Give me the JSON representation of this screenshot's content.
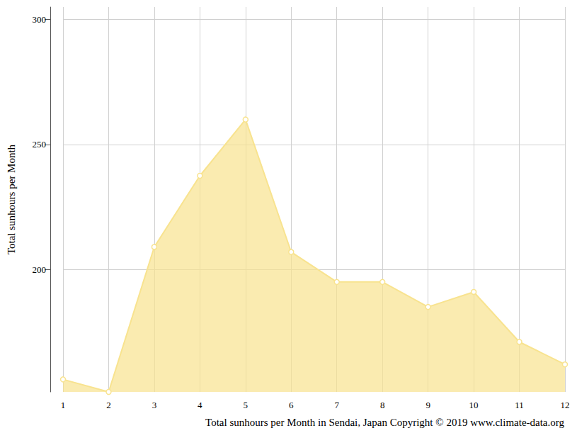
{
  "chart_data": {
    "type": "line",
    "title": "Total sunhours per Month in Sendai, Japan Copyright © 2019 www.climate-data.org",
    "y_label": "Total sunhours per Month",
    "categories": [
      "1",
      "2",
      "3",
      "4",
      "5",
      "6",
      "7",
      "8",
      "9",
      "10",
      "11",
      "12"
    ],
    "values": [
      156,
      151,
      209,
      237.5,
      260,
      207,
      195,
      195,
      185,
      191,
      171,
      162
    ],
    "color": "#f8e38f",
    "marker": "circle",
    "ylim": [
      151,
      305
    ],
    "yticks": [
      200,
      250,
      300
    ],
    "grid": true
  }
}
